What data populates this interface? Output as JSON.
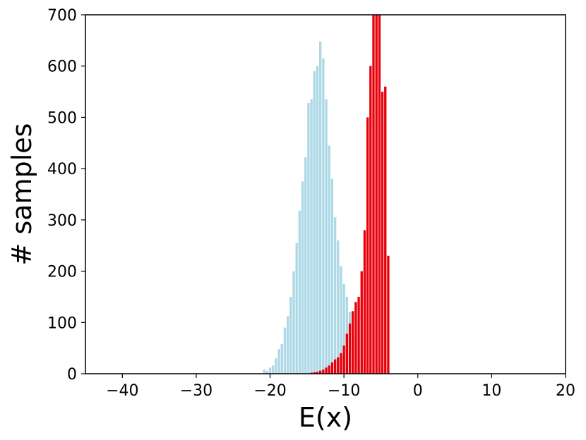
{
  "chart_data": {
    "type": "bar",
    "title": "",
    "xlabel": "E(x)",
    "ylabel": "# samples",
    "xlim": [
      -45,
      20
    ],
    "ylim": [
      0,
      700
    ],
    "xticks": [
      -40,
      -30,
      -20,
      -10,
      0,
      10,
      20
    ],
    "yticks": [
      0,
      100,
      200,
      300,
      400,
      500,
      600,
      700
    ],
    "xtick_labels": [
      "−40",
      "−30",
      "−20",
      "−10",
      "0",
      "10",
      "20"
    ],
    "ytick_labels": [
      "0",
      "100",
      "200",
      "300",
      "400",
      "500",
      "600",
      "700"
    ],
    "grid": false,
    "legend": "none",
    "series": [
      {
        "color": "#add8e6",
        "x": [
          -20.8,
          -20.4,
          -20.0,
          -19.6,
          -19.2,
          -18.8,
          -18.4,
          -18.0,
          -17.6,
          -17.2,
          -16.8,
          -16.4,
          -16.0,
          -15.6,
          -15.2,
          -14.8,
          -14.4,
          -14.0,
          -13.6,
          -13.2,
          -12.8,
          -12.4,
          -12.0,
          -11.6,
          -11.2,
          -10.8,
          -10.4,
          -10.0,
          -9.6,
          -9.2,
          -8.8,
          -8.4,
          -8.0,
          -7.6,
          -7.2,
          -6.8,
          -6.4,
          -6.0,
          -5.6,
          -5.2
        ],
        "values": [
          8,
          6,
          12,
          16,
          30,
          48,
          58,
          90,
          112,
          150,
          200,
          255,
          318,
          375,
          422,
          528,
          535,
          590,
          600,
          648,
          615,
          535,
          445,
          380,
          305,
          260,
          210,
          175,
          150,
          120,
          72,
          55,
          32,
          25,
          18,
          10,
          6,
          4,
          2,
          1
        ]
      },
      {
        "color": "#e8000b",
        "x": [
          -14.4,
          -14.0,
          -13.6,
          -13.2,
          -12.8,
          -12.4,
          -12.0,
          -11.6,
          -11.2,
          -10.8,
          -10.4,
          -10.0,
          -9.6,
          -9.2,
          -8.8,
          -8.4,
          -8.0,
          -7.6,
          -7.2,
          -6.8,
          -6.4,
          -6.0,
          -5.6,
          -5.2,
          -4.8,
          -4.4,
          -4.0
        ],
        "values": [
          2,
          3,
          4,
          6,
          8,
          12,
          16,
          22,
          28,
          32,
          40,
          55,
          78,
          98,
          122,
          140,
          150,
          200,
          280,
          500,
          600,
          700,
          700,
          700,
          550,
          560,
          230
        ]
      }
    ]
  }
}
